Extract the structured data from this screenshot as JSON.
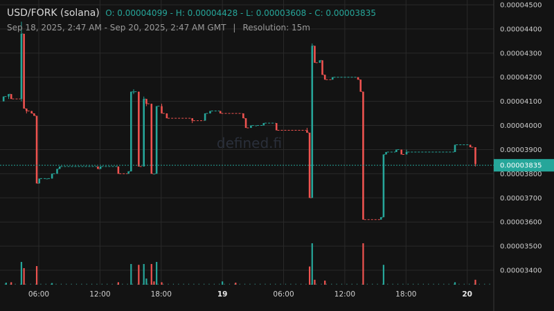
{
  "header": {
    "pair": "USD/FORK (solana)",
    "ohlc": "O: 0.00004099 - H: 0.00004428 - L: 0.00003608 - C: 0.00003835",
    "range": "Sep 18, 2025, 2:47 AM - Sep 20, 2025, 2:47 AM GMT",
    "separator": "|",
    "resolution": "Resolution: 15m"
  },
  "watermark": "defined.fi",
  "colors": {
    "up": "#26a69a",
    "down": "#ef5350",
    "background": "#131313",
    "grid": "#2a2a2a"
  },
  "chart_data": {
    "type": "candlestick",
    "resolution_minutes": 15,
    "ylim": [
      3.34e-05,
      4.52e-05
    ],
    "x_ticks": [
      {
        "label": "06:00",
        "hour": 6,
        "bold": false
      },
      {
        "label": "12:00",
        "hour": 12,
        "bold": false
      },
      {
        "label": "18:00",
        "hour": 18,
        "bold": false
      },
      {
        "label": "19",
        "hour": 24,
        "bold": true
      },
      {
        "label": "06:00",
        "hour": 30,
        "bold": false
      },
      {
        "label": "12:00",
        "hour": 36,
        "bold": false
      },
      {
        "label": "18:00",
        "hour": 42,
        "bold": false
      },
      {
        "label": "20",
        "hour": 48,
        "bold": true
      }
    ],
    "y_ticks": [
      "0.00004500",
      "0.00004400",
      "0.00004300",
      "0.00004200",
      "0.00004100",
      "0.00004000",
      "0.00003900",
      "0.00003800",
      "0.00003700",
      "0.00003600",
      "0.00003500",
      "0.00003400"
    ],
    "last_price": "0.00003835",
    "x_range_hours": [
      2.2,
      50.6
    ],
    "candles": [
      {
        "t": 2.55,
        "o": 4.1e-05,
        "h": 4.12e-05,
        "l": 4.1e-05,
        "c": 4.12e-05
      },
      {
        "t": 3.05,
        "o": 4.12e-05,
        "h": 4.13e-05,
        "l": 4.11e-05,
        "c": 4.13e-05
      },
      {
        "t": 3.3,
        "o": 4.13e-05,
        "h": 4.13e-05,
        "l": 4.11e-05,
        "c": 4.11e-05
      },
      {
        "t": 4.3,
        "o": 4.11e-05,
        "h": 4.43e-05,
        "l": 4.1e-05,
        "c": 4.38e-05
      },
      {
        "t": 4.55,
        "o": 4.38e-05,
        "h": 4.38e-05,
        "l": 4.07e-05,
        "c": 4.07e-05
      },
      {
        "t": 4.8,
        "o": 4.07e-05,
        "h": 4.07e-05,
        "l": 4.05e-05,
        "c": 4.06e-05
      },
      {
        "t": 5.3,
        "o": 4.06e-05,
        "h": 4.06e-05,
        "l": 4.05e-05,
        "c": 4.05e-05
      },
      {
        "t": 5.55,
        "o": 4.05e-05,
        "h": 4.05e-05,
        "l": 4.04e-05,
        "c": 4.04e-05
      },
      {
        "t": 5.8,
        "o": 4.04e-05,
        "h": 4.04e-05,
        "l": 3.76e-05,
        "c": 3.76e-05
      },
      {
        "t": 6.05,
        "o": 3.76e-05,
        "h": 3.78e-05,
        "l": 3.76e-05,
        "c": 3.78e-05
      },
      {
        "t": 6.8,
        "o": 3.78e-05,
        "h": 3.78e-05,
        "l": 3.78e-05,
        "c": 3.78e-05
      },
      {
        "t": 7.3,
        "o": 3.78e-05,
        "h": 3.8e-05,
        "l": 3.78e-05,
        "c": 3.8e-05
      },
      {
        "t": 7.8,
        "o": 3.8e-05,
        "h": 3.82e-05,
        "l": 3.8e-05,
        "c": 3.82e-05
      },
      {
        "t": 8.05,
        "o": 3.82e-05,
        "h": 3.83e-05,
        "l": 3.82e-05,
        "c": 3.83e-05
      },
      {
        "t": 11.8,
        "o": 3.83e-05,
        "h": 3.83e-05,
        "l": 3.82e-05,
        "c": 3.82e-05
      },
      {
        "t": 12.05,
        "o": 3.82e-05,
        "h": 3.83e-05,
        "l": 3.82e-05,
        "c": 3.83e-05
      },
      {
        "t": 13.8,
        "o": 3.83e-05,
        "h": 3.83e-05,
        "l": 3.8e-05,
        "c": 3.8e-05
      },
      {
        "t": 14.8,
        "o": 3.8e-05,
        "h": 3.81e-05,
        "l": 3.8e-05,
        "c": 3.81e-05
      },
      {
        "t": 15.05,
        "o": 3.81e-05,
        "h": 4.14e-05,
        "l": 3.81e-05,
        "c": 4.14e-05
      },
      {
        "t": 15.3,
        "o": 4.14e-05,
        "h": 4.15e-05,
        "l": 4.13e-05,
        "c": 4.14e-05
      },
      {
        "t": 15.8,
        "o": 4.14e-05,
        "h": 4.14e-05,
        "l": 3.83e-05,
        "c": 3.83e-05
      },
      {
        "t": 16.3,
        "o": 3.83e-05,
        "h": 4.12e-05,
        "l": 3.83e-05,
        "c": 4.11e-05
      },
      {
        "t": 16.55,
        "o": 4.11e-05,
        "h": 4.11e-05,
        "l": 4.08e-05,
        "c": 4.09e-05
      },
      {
        "t": 17.05,
        "o": 4.09e-05,
        "h": 4.09e-05,
        "l": 3.8e-05,
        "c": 3.8e-05
      },
      {
        "t": 17.3,
        "o": 3.8e-05,
        "h": 3.8e-05,
        "l": 3.8e-05,
        "c": 3.8e-05
      },
      {
        "t": 17.55,
        "o": 3.8e-05,
        "h": 4.08e-05,
        "l": 3.8e-05,
        "c": 4.08e-05
      },
      {
        "t": 18.05,
        "o": 4.08e-05,
        "h": 4.09e-05,
        "l": 4.05e-05,
        "c": 4.05e-05
      },
      {
        "t": 18.55,
        "o": 4.05e-05,
        "h": 4.05e-05,
        "l": 4.03e-05,
        "c": 4.03e-05
      },
      {
        "t": 21.05,
        "o": 4.03e-05,
        "h": 4.03e-05,
        "l": 4.01e-05,
        "c": 4.02e-05
      },
      {
        "t": 22.3,
        "o": 4.02e-05,
        "h": 4.05e-05,
        "l": 4.02e-05,
        "c": 4.05e-05
      },
      {
        "t": 22.8,
        "o": 4.05e-05,
        "h": 4.06e-05,
        "l": 4.05e-05,
        "c": 4.06e-05
      },
      {
        "t": 23.8,
        "o": 4.06e-05,
        "h": 4.06e-05,
        "l": 4.05e-05,
        "c": 4.05e-05
      },
      {
        "t": 26.05,
        "o": 4.05e-05,
        "h": 4.05e-05,
        "l": 4.03e-05,
        "c": 4.03e-05
      },
      {
        "t": 26.3,
        "o": 4.03e-05,
        "h": 4.03e-05,
        "l": 3.99e-05,
        "c": 3.99e-05
      },
      {
        "t": 26.8,
        "o": 3.99e-05,
        "h": 4e-05,
        "l": 3.99e-05,
        "c": 4e-05
      },
      {
        "t": 27.3,
        "o": 4e-05,
        "h": 4e-05,
        "l": 4e-05,
        "c": 4e-05
      },
      {
        "t": 28.05,
        "o": 4e-05,
        "h": 4.01e-05,
        "l": 4e-05,
        "c": 4.01e-05
      },
      {
        "t": 29.3,
        "o": 4.01e-05,
        "h": 4.01e-05,
        "l": 3.98e-05,
        "c": 3.98e-05
      },
      {
        "t": 32.3,
        "o": 3.98e-05,
        "h": 3.99e-05,
        "l": 3.97e-05,
        "c": 3.97e-05
      },
      {
        "t": 32.55,
        "o": 3.97e-05,
        "h": 3.97e-05,
        "l": 3.7e-05,
        "c": 3.7e-05
      },
      {
        "t": 32.8,
        "o": 3.7e-05,
        "h": 4.34e-05,
        "l": 3.7e-05,
        "c": 4.33e-05
      },
      {
        "t": 33.05,
        "o": 4.33e-05,
        "h": 4.33e-05,
        "l": 4.26e-05,
        "c": 4.26e-05
      },
      {
        "t": 33.55,
        "o": 4.26e-05,
        "h": 4.27e-05,
        "l": 4.26e-05,
        "c": 4.27e-05
      },
      {
        "t": 33.8,
        "o": 4.27e-05,
        "h": 4.27e-05,
        "l": 4.21e-05,
        "c": 4.21e-05
      },
      {
        "t": 34.05,
        "o": 4.21e-05,
        "h": 4.21e-05,
        "l": 4.19e-05,
        "c": 4.19e-05
      },
      {
        "t": 34.8,
        "o": 4.19e-05,
        "h": 4.2e-05,
        "l": 4.19e-05,
        "c": 4.2e-05
      },
      {
        "t": 37.3,
        "o": 4.2e-05,
        "h": 4.2e-05,
        "l": 4.19e-05,
        "c": 4.19e-05
      },
      {
        "t": 37.55,
        "o": 4.19e-05,
        "h": 4.19e-05,
        "l": 4.14e-05,
        "c": 4.14e-05
      },
      {
        "t": 37.8,
        "o": 4.14e-05,
        "h": 4.14e-05,
        "l": 3.61e-05,
        "c": 3.61e-05
      },
      {
        "t": 39.55,
        "o": 3.61e-05,
        "h": 3.62e-05,
        "l": 3.61e-05,
        "c": 3.62e-05
      },
      {
        "t": 39.8,
        "o": 3.62e-05,
        "h": 3.88e-05,
        "l": 3.62e-05,
        "c": 3.88e-05
      },
      {
        "t": 40.05,
        "o": 3.88e-05,
        "h": 3.89e-05,
        "l": 3.88e-05,
        "c": 3.89e-05
      },
      {
        "t": 41.05,
        "o": 3.89e-05,
        "h": 3.9e-05,
        "l": 3.89e-05,
        "c": 3.9e-05
      },
      {
        "t": 41.55,
        "o": 3.9e-05,
        "h": 3.9e-05,
        "l": 3.88e-05,
        "c": 3.88e-05
      },
      {
        "t": 42.05,
        "o": 3.88e-05,
        "h": 3.9e-05,
        "l": 3.88e-05,
        "c": 3.89e-05
      },
      {
        "t": 46.8,
        "o": 3.89e-05,
        "h": 3.92e-05,
        "l": 3.89e-05,
        "c": 3.92e-05
      },
      {
        "t": 48.3,
        "o": 3.92e-05,
        "h": 3.92e-05,
        "l": 3.91e-05,
        "c": 3.91e-05
      },
      {
        "t": 48.8,
        "o": 3.91e-05,
        "h": 3.91e-05,
        "l": 3.83e-05,
        "c": 3.84e-05
      }
    ],
    "volume_scale_max": 1.0,
    "volumes": [
      {
        "t": 2.8,
        "v": 0.05,
        "up": true
      },
      {
        "t": 3.3,
        "v": 0.06,
        "up": false
      },
      {
        "t": 4.3,
        "v": 0.55,
        "up": true
      },
      {
        "t": 4.55,
        "v": 0.4,
        "up": false
      },
      {
        "t": 5.8,
        "v": 0.45,
        "up": false
      },
      {
        "t": 7.3,
        "v": 0.04,
        "up": true
      },
      {
        "t": 13.8,
        "v": 0.06,
        "up": false
      },
      {
        "t": 15.05,
        "v": 0.5,
        "up": true
      },
      {
        "t": 15.8,
        "v": 0.48,
        "up": false
      },
      {
        "t": 16.3,
        "v": 0.5,
        "up": true
      },
      {
        "t": 16.55,
        "v": 0.15,
        "up": true
      },
      {
        "t": 17.05,
        "v": 0.5,
        "up": false
      },
      {
        "t": 17.3,
        "v": 0.08,
        "up": false
      },
      {
        "t": 17.55,
        "v": 0.55,
        "up": true
      },
      {
        "t": 18.05,
        "v": 0.06,
        "up": false
      },
      {
        "t": 24.0,
        "v": 0.08,
        "up": true
      },
      {
        "t": 25.3,
        "v": 0.05,
        "up": false
      },
      {
        "t": 32.55,
        "v": 0.44,
        "up": false
      },
      {
        "t": 32.8,
        "v": 1.0,
        "up": true
      },
      {
        "t": 33.05,
        "v": 0.12,
        "up": false
      },
      {
        "t": 34.05,
        "v": 0.1,
        "up": false
      },
      {
        "t": 37.8,
        "v": 1.0,
        "up": false
      },
      {
        "t": 39.8,
        "v": 0.48,
        "up": true
      },
      {
        "t": 46.8,
        "v": 0.06,
        "up": true
      },
      {
        "t": 48.8,
        "v": 0.12,
        "up": false
      }
    ]
  }
}
